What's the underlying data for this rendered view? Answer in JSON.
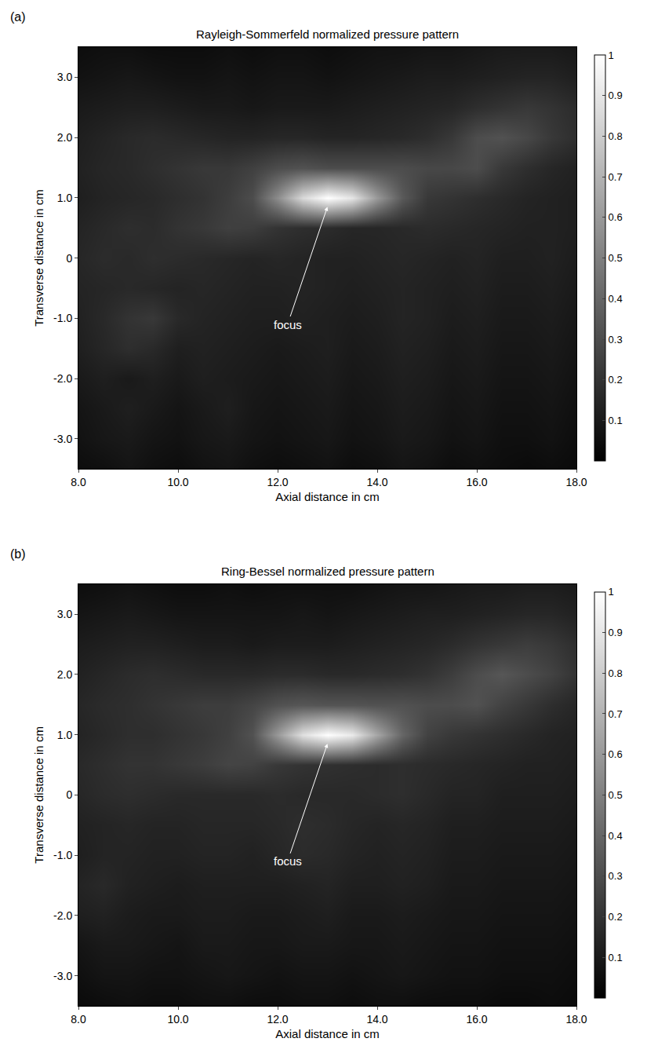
{
  "chart_data": [
    {
      "type": "heatmap",
      "label": "(a)",
      "title": "Rayleigh-Sommerfeld normalized pressure pattern",
      "x_label": "Axial distance in cm",
      "y_label": "Transverse distance in cm",
      "x": [
        8,
        8.5,
        9,
        9.5,
        10,
        10.5,
        11,
        11.5,
        12,
        12.5,
        13,
        13.5,
        14,
        14.5,
        15,
        15.5,
        16,
        16.5,
        17,
        17.5,
        18
      ],
      "y": [
        -3.5,
        -3,
        -2.5,
        -2,
        -1.5,
        -1,
        -0.5,
        0,
        0.5,
        1,
        1.5,
        2,
        2.5,
        3,
        3.5
      ],
      "z": [
        [
          0.05,
          0.06,
          0.08,
          0.06,
          0.05,
          0.07,
          0.08,
          0.06,
          0.05,
          0.06,
          0.07,
          0.05,
          0.06,
          0.08,
          0.07,
          0.05,
          0.06,
          0.05,
          0.04,
          0.05,
          0.04
        ],
        [
          0.07,
          0.09,
          0.1,
          0.08,
          0.07,
          0.09,
          0.1,
          0.08,
          0.07,
          0.08,
          0.09,
          0.07,
          0.08,
          0.1,
          0.09,
          0.07,
          0.08,
          0.06,
          0.06,
          0.07,
          0.05
        ],
        [
          0.08,
          0.1,
          0.12,
          0.1,
          0.08,
          0.1,
          0.12,
          0.09,
          0.08,
          0.09,
          0.1,
          0.08,
          0.09,
          0.11,
          0.1,
          0.08,
          0.09,
          0.07,
          0.07,
          0.08,
          0.06
        ],
        [
          0.1,
          0.12,
          0.1,
          0.12,
          0.1,
          0.12,
          0.11,
          0.1,
          0.09,
          0.1,
          0.11,
          0.09,
          0.1,
          0.12,
          0.11,
          0.09,
          0.1,
          0.08,
          0.08,
          0.09,
          0.07
        ],
        [
          0.12,
          0.15,
          0.18,
          0.16,
          0.12,
          0.13,
          0.12,
          0.11,
          0.1,
          0.11,
          0.12,
          0.1,
          0.11,
          0.13,
          0.12,
          0.1,
          0.11,
          0.09,
          0.09,
          0.1,
          0.08
        ],
        [
          0.13,
          0.16,
          0.2,
          0.22,
          0.16,
          0.14,
          0.13,
          0.12,
          0.12,
          0.13,
          0.12,
          0.11,
          0.12,
          0.14,
          0.13,
          0.11,
          0.12,
          0.1,
          0.1,
          0.11,
          0.09
        ],
        [
          0.14,
          0.15,
          0.16,
          0.15,
          0.14,
          0.15,
          0.14,
          0.13,
          0.13,
          0.14,
          0.13,
          0.12,
          0.13,
          0.14,
          0.13,
          0.12,
          0.13,
          0.11,
          0.11,
          0.12,
          0.1
        ],
        [
          0.15,
          0.17,
          0.16,
          0.18,
          0.17,
          0.16,
          0.15,
          0.14,
          0.15,
          0.14,
          0.13,
          0.13,
          0.14,
          0.15,
          0.14,
          0.13,
          0.14,
          0.12,
          0.12,
          0.13,
          0.11
        ],
        [
          0.14,
          0.16,
          0.18,
          0.17,
          0.2,
          0.22,
          0.25,
          0.24,
          0.2,
          0.18,
          0.17,
          0.15,
          0.15,
          0.16,
          0.17,
          0.16,
          0.15,
          0.14,
          0.13,
          0.13,
          0.12
        ],
        [
          0.12,
          0.14,
          0.15,
          0.16,
          0.18,
          0.2,
          0.24,
          0.3,
          0.55,
          0.85,
          1,
          0.9,
          0.6,
          0.35,
          0.22,
          0.2,
          0.18,
          0.16,
          0.14,
          0.13,
          0.12
        ],
        [
          0.13,
          0.15,
          0.16,
          0.18,
          0.2,
          0.22,
          0.22,
          0.25,
          0.3,
          0.32,
          0.3,
          0.3,
          0.3,
          0.3,
          0.28,
          0.28,
          0.3,
          0.22,
          0.18,
          0.15,
          0.13
        ],
        [
          0.12,
          0.14,
          0.16,
          0.17,
          0.16,
          0.15,
          0.14,
          0.14,
          0.15,
          0.15,
          0.14,
          0.14,
          0.15,
          0.16,
          0.18,
          0.22,
          0.3,
          0.32,
          0.28,
          0.22,
          0.18
        ],
        [
          0.1,
          0.11,
          0.12,
          0.12,
          0.11,
          0.1,
          0.1,
          0.09,
          0.1,
          0.1,
          0.1,
          0.11,
          0.12,
          0.13,
          0.14,
          0.15,
          0.18,
          0.2,
          0.22,
          0.2,
          0.17
        ],
        [
          0.07,
          0.08,
          0.09,
          0.08,
          0.07,
          0.07,
          0.08,
          0.07,
          0.08,
          0.08,
          0.07,
          0.08,
          0.09,
          0.1,
          0.11,
          0.11,
          0.12,
          0.13,
          0.14,
          0.14,
          0.12
        ],
        [
          0.05,
          0.06,
          0.06,
          0.05,
          0.05,
          0.05,
          0.06,
          0.05,
          0.06,
          0.06,
          0.05,
          0.06,
          0.07,
          0.07,
          0.08,
          0.08,
          0.09,
          0.1,
          0.1,
          0.1,
          0.09
        ]
      ],
      "xlim": [
        8,
        18
      ],
      "xticks": [
        {
          "value": 8,
          "label": "8.0"
        },
        {
          "value": 10,
          "label": "10.0"
        },
        {
          "value": 12,
          "label": "12.0"
        },
        {
          "value": 14,
          "label": "14.0"
        },
        {
          "value": 16,
          "label": "16.0"
        },
        {
          "value": 18,
          "label": "18.0"
        }
      ],
      "ylim": [
        -3.5,
        3.5
      ],
      "yticks": [
        {
          "value": -3,
          "label": "-3.0"
        },
        {
          "value": -2,
          "label": "-2.0"
        },
        {
          "value": -1,
          "label": "-1.0"
        },
        0,
        {
          "value": 1,
          "label": "1.0"
        },
        {
          "value": 2,
          "label": "2.0"
        },
        {
          "value": 3,
          "label": "3.0"
        }
      ],
      "colorbar": {
        "range": [
          0,
          1
        ],
        "ticks": [
          0.1,
          0.2,
          0.3,
          0.4,
          0.5,
          0.6,
          0.7,
          0.8,
          0.9,
          1
        ]
      },
      "color": "gray",
      "annotations": [
        {
          "text": "focus",
          "x": 13,
          "y": 0.85,
          "text_x": 12.2,
          "text_y": -1.1
        }
      ]
    },
    {
      "type": "heatmap",
      "label": "(b)",
      "title": "Ring-Bessel normalized pressure pattern",
      "x_label": "Axial distance in cm",
      "y_label": "Transverse distance in cm",
      "x": [
        8,
        8.5,
        9,
        9.5,
        10,
        10.5,
        11,
        11.5,
        12,
        12.5,
        13,
        13.5,
        14,
        14.5,
        15,
        15.5,
        16,
        16.5,
        17,
        17.5,
        18
      ],
      "y": [
        -3.5,
        -3,
        -2.5,
        -2,
        -1.5,
        -1,
        -0.5,
        0,
        0.5,
        1,
        1.5,
        2,
        2.5,
        3,
        3.5
      ],
      "z": [
        [
          0.04,
          0.05,
          0.06,
          0.05,
          0.05,
          0.06,
          0.06,
          0.05,
          0.05,
          0.06,
          0.06,
          0.05,
          0.06,
          0.06,
          0.05,
          0.05,
          0.05,
          0.04,
          0.04,
          0.05,
          0.04
        ],
        [
          0.06,
          0.08,
          0.08,
          0.07,
          0.07,
          0.08,
          0.09,
          0.08,
          0.07,
          0.08,
          0.08,
          0.07,
          0.08,
          0.09,
          0.08,
          0.07,
          0.07,
          0.06,
          0.06,
          0.06,
          0.05
        ],
        [
          0.08,
          0.1,
          0.1,
          0.09,
          0.08,
          0.1,
          0.1,
          0.09,
          0.09,
          0.1,
          0.1,
          0.09,
          0.09,
          0.1,
          0.09,
          0.08,
          0.08,
          0.07,
          0.07,
          0.07,
          0.06
        ],
        [
          0.12,
          0.13,
          0.11,
          0.1,
          0.1,
          0.11,
          0.11,
          0.1,
          0.1,
          0.11,
          0.12,
          0.1,
          0.1,
          0.11,
          0.1,
          0.09,
          0.09,
          0.08,
          0.08,
          0.08,
          0.07
        ],
        [
          0.14,
          0.16,
          0.13,
          0.12,
          0.11,
          0.12,
          0.12,
          0.12,
          0.12,
          0.13,
          0.14,
          0.12,
          0.12,
          0.13,
          0.12,
          0.1,
          0.1,
          0.09,
          0.09,
          0.09,
          0.08
        ],
        [
          0.12,
          0.14,
          0.14,
          0.13,
          0.13,
          0.14,
          0.14,
          0.13,
          0.15,
          0.17,
          0.16,
          0.14,
          0.13,
          0.14,
          0.13,
          0.11,
          0.11,
          0.1,
          0.1,
          0.1,
          0.09
        ],
        [
          0.13,
          0.14,
          0.15,
          0.14,
          0.14,
          0.15,
          0.15,
          0.15,
          0.16,
          0.18,
          0.17,
          0.15,
          0.14,
          0.15,
          0.14,
          0.12,
          0.12,
          0.11,
          0.11,
          0.11,
          0.1
        ],
        [
          0.15,
          0.17,
          0.18,
          0.17,
          0.16,
          0.16,
          0.16,
          0.16,
          0.17,
          0.16,
          0.16,
          0.16,
          0.17,
          0.18,
          0.16,
          0.14,
          0.14,
          0.12,
          0.12,
          0.12,
          0.11
        ],
        [
          0.16,
          0.18,
          0.2,
          0.2,
          0.22,
          0.24,
          0.27,
          0.26,
          0.22,
          0.2,
          0.19,
          0.18,
          0.17,
          0.18,
          0.17,
          0.16,
          0.15,
          0.14,
          0.13,
          0.13,
          0.12
        ],
        [
          0.14,
          0.16,
          0.18,
          0.18,
          0.2,
          0.22,
          0.25,
          0.32,
          0.6,
          0.88,
          1,
          0.92,
          0.65,
          0.4,
          0.26,
          0.22,
          0.2,
          0.18,
          0.16,
          0.14,
          0.13
        ],
        [
          0.15,
          0.17,
          0.18,
          0.2,
          0.22,
          0.24,
          0.24,
          0.27,
          0.32,
          0.34,
          0.33,
          0.33,
          0.32,
          0.32,
          0.3,
          0.3,
          0.32,
          0.26,
          0.22,
          0.18,
          0.15
        ],
        [
          0.13,
          0.15,
          0.17,
          0.18,
          0.17,
          0.16,
          0.16,
          0.16,
          0.17,
          0.17,
          0.16,
          0.16,
          0.17,
          0.18,
          0.2,
          0.24,
          0.3,
          0.34,
          0.3,
          0.26,
          0.2
        ],
        [
          0.11,
          0.12,
          0.13,
          0.13,
          0.12,
          0.11,
          0.11,
          0.1,
          0.11,
          0.11,
          0.11,
          0.12,
          0.13,
          0.14,
          0.15,
          0.17,
          0.2,
          0.22,
          0.24,
          0.22,
          0.18
        ],
        [
          0.08,
          0.09,
          0.1,
          0.09,
          0.08,
          0.08,
          0.08,
          0.08,
          0.08,
          0.09,
          0.08,
          0.09,
          0.1,
          0.11,
          0.12,
          0.12,
          0.13,
          0.14,
          0.15,
          0.15,
          0.13
        ],
        [
          0.05,
          0.06,
          0.07,
          0.06,
          0.05,
          0.05,
          0.06,
          0.05,
          0.06,
          0.06,
          0.06,
          0.06,
          0.07,
          0.08,
          0.08,
          0.09,
          0.1,
          0.1,
          0.11,
          0.11,
          0.1
        ]
      ],
      "xlim": [
        8,
        18
      ],
      "xticks": [
        {
          "value": 8,
          "label": "8.0"
        },
        {
          "value": 10,
          "label": "10.0"
        },
        {
          "value": 12,
          "label": "12.0"
        },
        {
          "value": 14,
          "label": "14.0"
        },
        {
          "value": 16,
          "label": "16.0"
        },
        {
          "value": 18,
          "label": "18.0"
        }
      ],
      "ylim": [
        -3.5,
        3.5
      ],
      "yticks": [
        {
          "value": -3,
          "label": "-3.0"
        },
        {
          "value": -2,
          "label": "-2.0"
        },
        {
          "value": -1,
          "label": "-1.0"
        },
        0,
        {
          "value": 1,
          "label": "1.0"
        },
        {
          "value": 2,
          "label": "2.0"
        },
        {
          "value": 3,
          "label": "3.0"
        }
      ],
      "colorbar": {
        "range": [
          0,
          1
        ],
        "ticks": [
          0.1,
          0.2,
          0.3,
          0.4,
          0.5,
          0.6,
          0.7,
          0.8,
          0.9,
          1
        ]
      },
      "color": "gray",
      "annotations": [
        {
          "text": "focus",
          "x": 13,
          "y": 0.85,
          "text_x": 12.2,
          "text_y": -1.1
        }
      ]
    }
  ]
}
